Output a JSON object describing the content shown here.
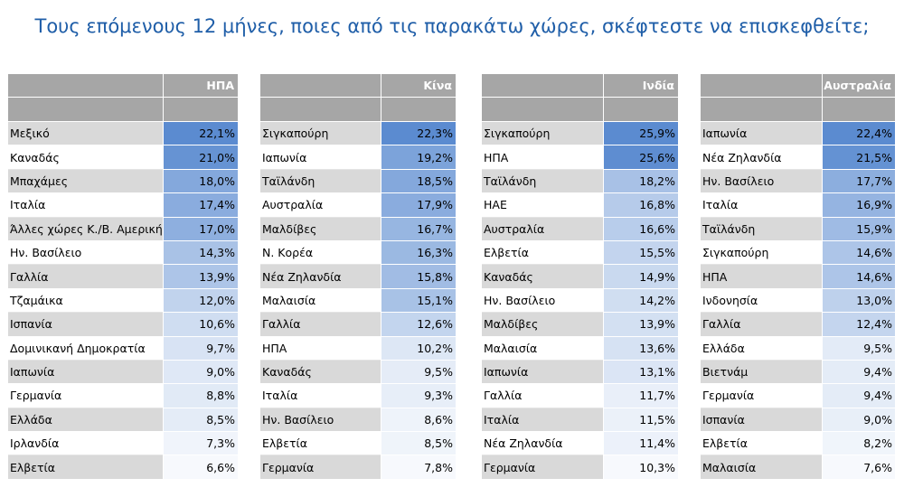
{
  "title": "Τους επόμενους 12 μήνες, ποιες από τις παρακάτω χώρες, σκέφτεστε να επισκεφθείτε;",
  "colors": {
    "header_gray": "#a6a6a6",
    "row_gray": "#d9d9d9",
    "scale_low": "#ffffff",
    "scale_high": "#5b8bd0"
  },
  "tables": [
    {
      "header": "ΗΠΑ",
      "rows": [
        {
          "country": "Μεξικό",
          "value": "22,1%"
        },
        {
          "country": "Καναδάς",
          "value": "21,0%"
        },
        {
          "country": "Μπαχάμες",
          "value": "18,0%"
        },
        {
          "country": "Ιταλία",
          "value": "17,4%"
        },
        {
          "country": "Άλλες χώρες Κ./Β. Αμερικής",
          "value": "17,0%"
        },
        {
          "country": "Ην. Βασίλειο",
          "value": "14,3%"
        },
        {
          "country": "Γαλλία",
          "value": "13,9%"
        },
        {
          "country": "Τζαμάικα",
          "value": "12,0%"
        },
        {
          "country": "Ισπανία",
          "value": "10,6%"
        },
        {
          "country": "Δομινικανή Δημοκρατία",
          "value": "9,7%"
        },
        {
          "country": "Ιαπωνία",
          "value": "9,0%"
        },
        {
          "country": "Γερμανία",
          "value": "8,8%"
        },
        {
          "country": "Ελλάδα",
          "value": "8,5%"
        },
        {
          "country": "Ιρλανδία",
          "value": "7,3%"
        },
        {
          "country": "Ελβετία",
          "value": "6,6%"
        }
      ]
    },
    {
      "header": "Κίνα",
      "rows": [
        {
          "country": "Σιγκαπούρη",
          "value": "22,3%"
        },
        {
          "country": "Ιαπωνία",
          "value": "19,2%"
        },
        {
          "country": "Ταϊλάνδη",
          "value": "18,5%"
        },
        {
          "country": "Αυστραλία",
          "value": "17,9%"
        },
        {
          "country": "Μαλδίβες",
          "value": "16,7%"
        },
        {
          "country": "Ν. Κορέα",
          "value": "16,3%"
        },
        {
          "country": "Νέα Ζηλανδία",
          "value": "15,8%"
        },
        {
          "country": "Μαλαισία",
          "value": "15,1%"
        },
        {
          "country": "Γαλλία",
          "value": "12,6%"
        },
        {
          "country": "ΗΠΑ",
          "value": "10,2%"
        },
        {
          "country": "Καναδάς",
          "value": "9,5%"
        },
        {
          "country": "Ιταλία",
          "value": "9,3%"
        },
        {
          "country": "Ην. Βασίλειο",
          "value": "8,6%"
        },
        {
          "country": "Ελβετία",
          "value": "8,5%"
        },
        {
          "country": "Γερμανία",
          "value": "7,8%"
        }
      ]
    },
    {
      "header": "Ινδία",
      "rows": [
        {
          "country": "Σιγκαπούρη",
          "value": "25,9%"
        },
        {
          "country": "ΗΠΑ",
          "value": "25,6%"
        },
        {
          "country": "Ταϊλάνδη",
          "value": "18,2%"
        },
        {
          "country": "ΗΑΕ",
          "value": "16,8%"
        },
        {
          "country": "Αυστραλία",
          "value": "16,6%"
        },
        {
          "country": "Ελβετία",
          "value": "15,5%"
        },
        {
          "country": "Καναδάς",
          "value": "14,9%"
        },
        {
          "country": "Ην. Βασίλειο",
          "value": "14,2%"
        },
        {
          "country": "Μαλδίβες",
          "value": "13,9%"
        },
        {
          "country": "Μαλαισία",
          "value": "13,6%"
        },
        {
          "country": "Ιαπωνία",
          "value": "13,1%"
        },
        {
          "country": "Γαλλία",
          "value": "11,7%"
        },
        {
          "country": "Ιταλία",
          "value": "11,5%"
        },
        {
          "country": "Νέα Ζηλανδία",
          "value": "11,4%"
        },
        {
          "country": "Γερμανία",
          "value": "10,3%"
        }
      ]
    },
    {
      "header": "Αυστραλία",
      "rows": [
        {
          "country": "Ιαπωνία",
          "value": "22,4%"
        },
        {
          "country": "Νέα Ζηλανδία",
          "value": "21,5%"
        },
        {
          "country": "Ην. Βασίλειο",
          "value": "17,7%"
        },
        {
          "country": "Ιταλία",
          "value": "16,9%"
        },
        {
          "country": "Ταϊλάνδη",
          "value": "15,9%"
        },
        {
          "country": "Σιγκαπούρη",
          "value": "14,6%"
        },
        {
          "country": "ΗΠΑ",
          "value": "14,6%"
        },
        {
          "country": "Ινδονησία",
          "value": "13,0%"
        },
        {
          "country": "Γαλλία",
          "value": "12,4%"
        },
        {
          "country": "Ελλάδα",
          "value": "9,5%"
        },
        {
          "country": "Βιετνάμ",
          "value": "9,4%"
        },
        {
          "country": "Γερμανία",
          "value": "9,4%"
        },
        {
          "country": "Ισπανία",
          "value": "9,0%"
        },
        {
          "country": "Ελβετία",
          "value": "8,2%"
        },
        {
          "country": "Μαλαισία",
          "value": "7,6%"
        }
      ]
    }
  ]
}
